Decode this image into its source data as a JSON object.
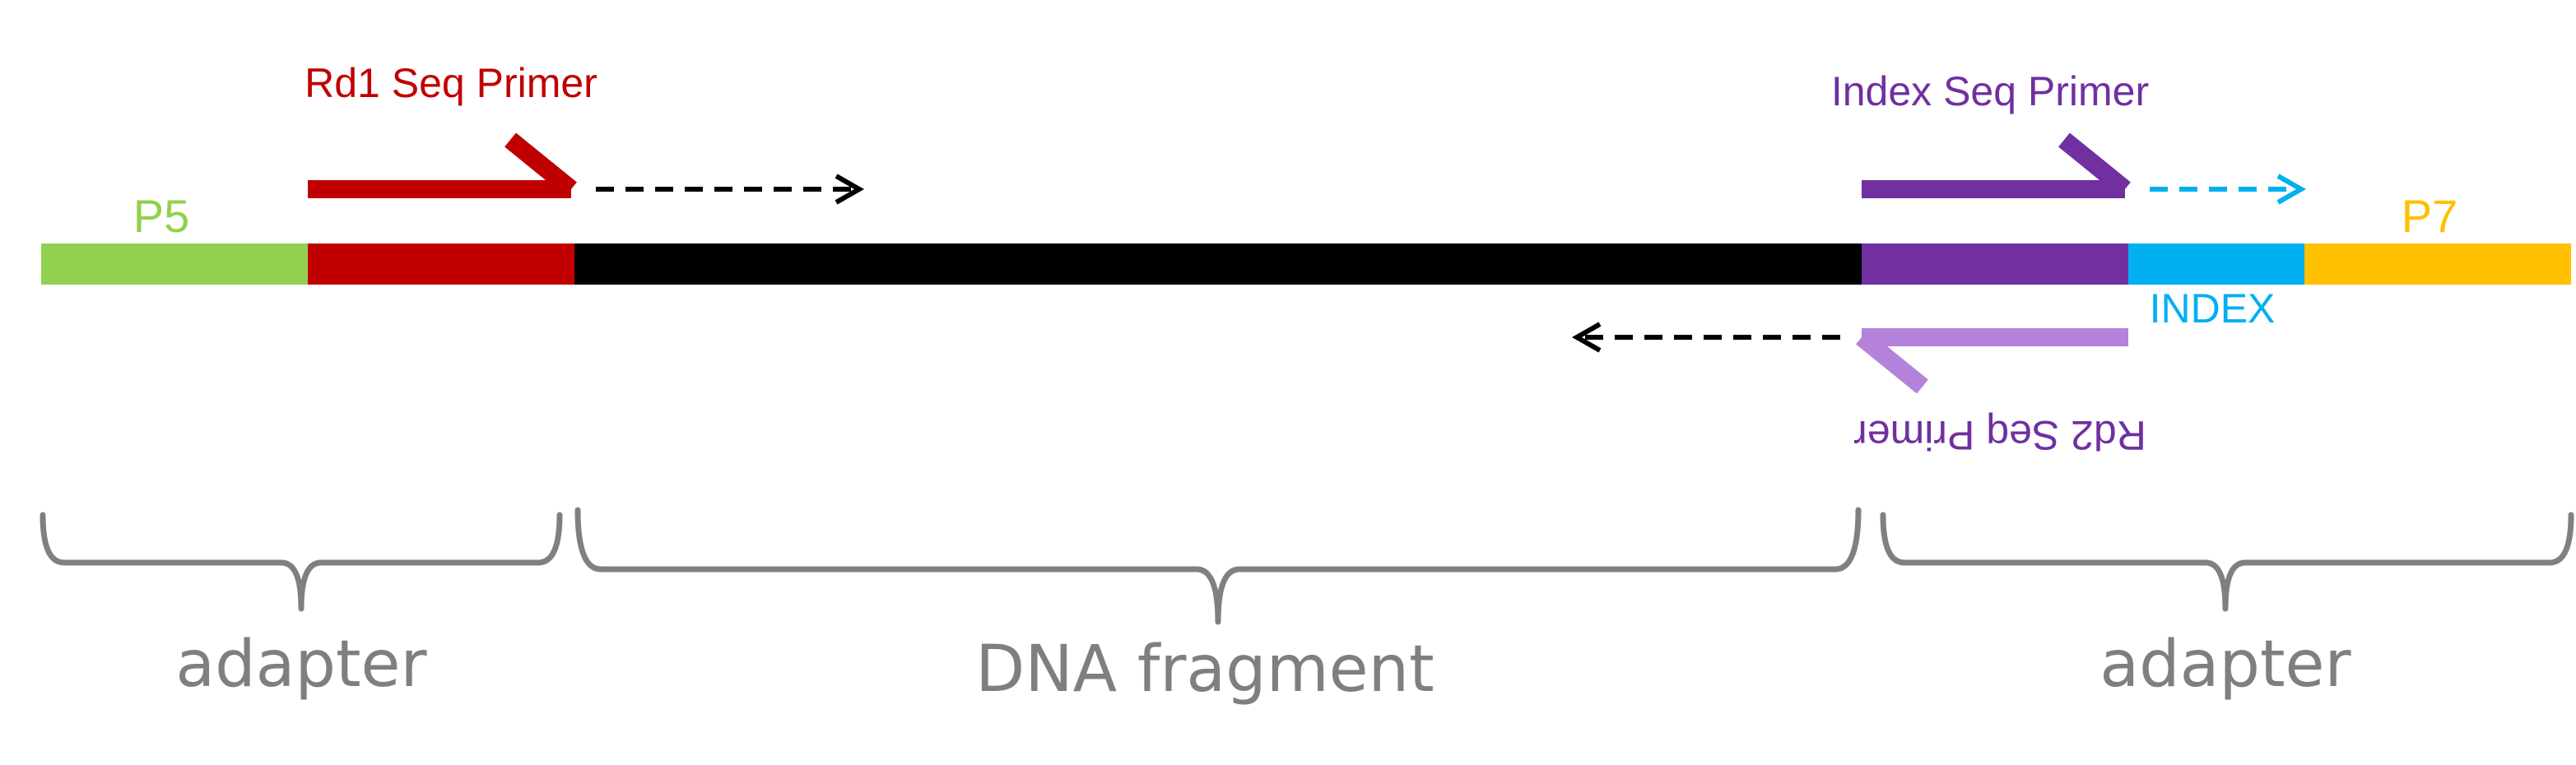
{
  "labels": {
    "p5": "P5",
    "p7": "P7",
    "rd1_primer": "Rd1 Seq Primer",
    "index_primer": "Index Seq Primer",
    "index": "INDEX",
    "rd2_primer": "Rd2 Seq Primer"
  },
  "braces": {
    "left": "adapter",
    "middle": "DNA fragment",
    "right": "adapter"
  },
  "colors": {
    "p5": "#92D050",
    "rd1": "#C00000",
    "insert": "#000000",
    "index_primer": "#7030A0",
    "index": "#00B0F0",
    "p7": "#FFC000",
    "rd2": "#B482DA",
    "brace": "#808080",
    "brace_text": "#7F7F7F"
  }
}
